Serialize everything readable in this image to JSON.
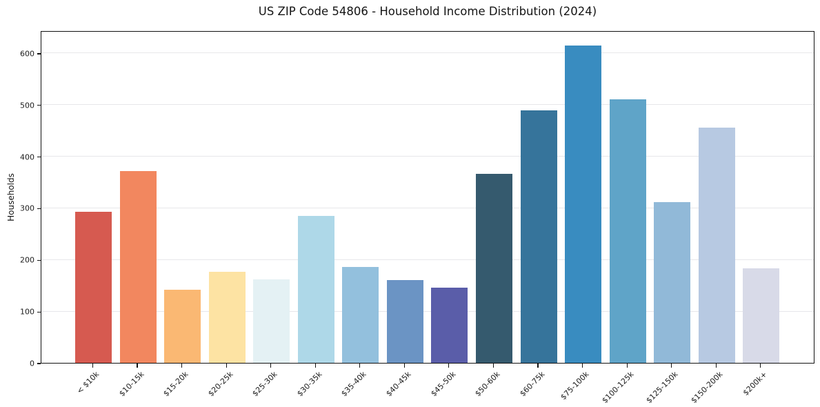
{
  "chart_data": {
    "type": "bar",
    "title": "US ZIP Code 54806 - Household Income Distribution (2024)",
    "xlabel": "",
    "ylabel": "Households",
    "categories": [
      "< $10k",
      "$10-15k",
      "$15-20k",
      "$20-25k",
      "$25-30k",
      "$30-35k",
      "$35-40k",
      "$40-45k",
      "$45-50k",
      "$50-60k",
      "$60-75k",
      "$75-100k",
      "$100-125k",
      "$125-150k",
      "$150-200k",
      "$200k+"
    ],
    "values": [
      293,
      371,
      142,
      176,
      162,
      285,
      186,
      160,
      145,
      366,
      489,
      615,
      511,
      312,
      456,
      183
    ],
    "bar_colors": [
      "#d65a50",
      "#f2875f",
      "#fab873",
      "#fde3a3",
      "#e4f1f4",
      "#aed8e8",
      "#93c0dd",
      "#6b94c4",
      "#5a5da9",
      "#355a6e",
      "#36749b",
      "#398cc0",
      "#5fa4c8",
      "#91b9d8",
      "#b7c9e2",
      "#d8dae8"
    ],
    "yticks": [
      0,
      100,
      200,
      300,
      400,
      500,
      600
    ],
    "ylim": [
      0,
      644
    ],
    "grid": "horizontal-major",
    "legend_position": "none",
    "colors": {
      "grid": "#e7e7ea",
      "spine": "#111111",
      "text": "#1c1c1c",
      "background": "#ffffff"
    }
  }
}
